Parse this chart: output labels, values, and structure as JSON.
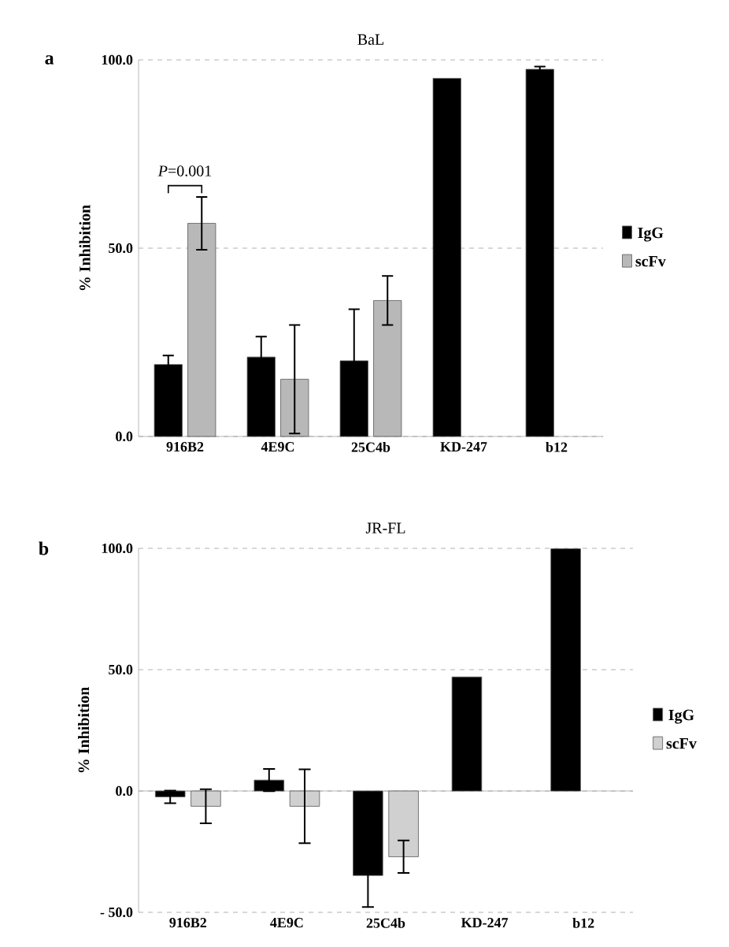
{
  "chart_data": [
    {
      "type": "bar",
      "title": "BaL",
      "ylabel": "% Inhibition",
      "categories": [
        "916B2",
        "4E9C",
        "25C4b",
        "KD-247",
        "b12"
      ],
      "series": [
        {
          "name": "IgG",
          "color": "#000000",
          "values": [
            19.1,
            21.1,
            20.1,
            95.1,
            97.5
          ],
          "errors": [
            2.4,
            5.4,
            13.7,
            null,
            0.7
          ]
        },
        {
          "name": "scFv",
          "color": "#b8b8b8",
          "values": [
            56.6,
            15.2,
            36.1,
            null,
            null
          ],
          "errors": [
            7.0,
            14.4,
            6.5,
            null,
            null
          ]
        }
      ],
      "ylim": [
        0,
        100
      ],
      "yticks": [
        {
          "value": 0,
          "label": "0.0"
        },
        {
          "value": 50,
          "label": "50.0"
        },
        {
          "value": 100,
          "label": "100.0"
        }
      ],
      "grid": "y",
      "legend": "right",
      "annotations": [
        "*P*=0.001",
        "a"
      ]
    },
    {
      "type": "bar",
      "title": "JR-FL",
      "ylabel": "% Inhibition",
      "categories": [
        "916B2",
        "4E9C",
        "25C4b",
        "KD-247",
        "b12"
      ],
      "series": [
        {
          "name": "IgG",
          "color": "#000000",
          "values": [
            -2.4,
            4.5,
            -34.8,
            47.0,
            99.8
          ],
          "errors": [
            2.6,
            4.6,
            13.0,
            null,
            null
          ]
        },
        {
          "name": "scFv",
          "color": "#d0d0d0",
          "values": [
            -6.3,
            -6.3,
            -27.1,
            null,
            null
          ],
          "errors": [
            7.0,
            15.2,
            6.7,
            null,
            null
          ]
        }
      ],
      "ylim": [
        -50,
        100
      ],
      "yticks": [
        {
          "value": -50,
          "label": "- 50.0"
        },
        {
          "value": 0,
          "label": "0.0"
        },
        {
          "value": 50,
          "label": "50.0"
        },
        {
          "value": 100,
          "label": "100.0"
        }
      ],
      "grid": "y",
      "legend": "right",
      "annotations": [
        "b"
      ]
    }
  ]
}
